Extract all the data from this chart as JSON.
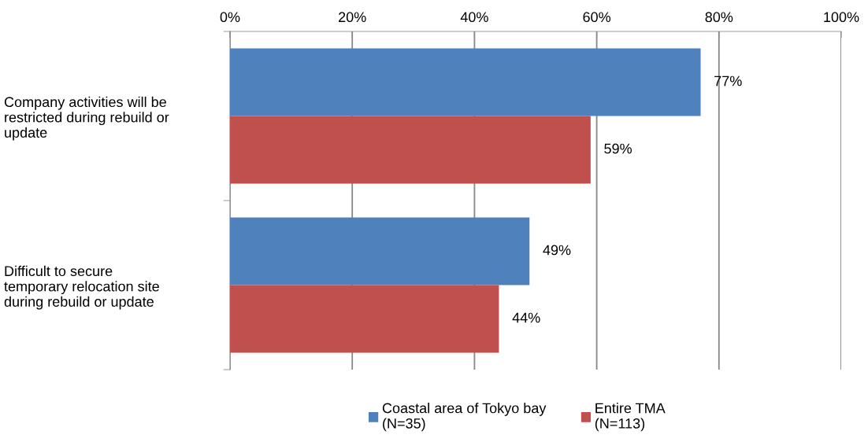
{
  "chart_data": {
    "type": "bar",
    "orientation": "horizontal",
    "categories": [
      "Company activities will be\nrestricted during rebuild or\nupdate",
      "Difficult to secure\ntemporary relocation site\nduring rebuild or update"
    ],
    "series": [
      {
        "name": "Coastal area of Tokyo bay\n(N=35)",
        "color": "#4f81bd",
        "values": [
          77,
          49
        ],
        "value_labels": [
          "77%",
          "49%"
        ]
      },
      {
        "name": "Entire TMA\n(N=113)",
        "color": "#c0504d",
        "values": [
          59,
          44
        ],
        "value_labels": [
          "59%",
          "44%"
        ]
      }
    ],
    "xlim": [
      0,
      100
    ],
    "xticks": [
      {
        "value": 0,
        "label": "0%"
      },
      {
        "value": 20,
        "label": "20%"
      },
      {
        "value": 40,
        "label": "40%"
      },
      {
        "value": 60,
        "label": "60%"
      },
      {
        "value": 80,
        "label": "80%"
      },
      {
        "value": 100,
        "label": "100%"
      }
    ],
    "grid": "x",
    "legend": "bottom"
  }
}
